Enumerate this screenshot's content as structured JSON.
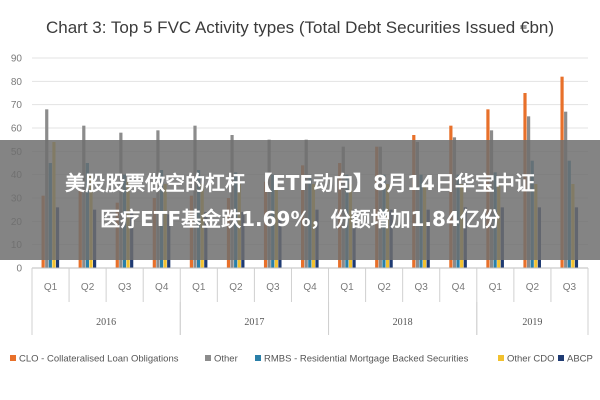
{
  "chart_data": {
    "type": "bar",
    "title": "Chart 3: Top 5 FVC Activity types (Total Debt Securities Issued €bn)",
    "ylim": [
      0,
      90
    ],
    "yticks": [
      0,
      10,
      20,
      30,
      40,
      50,
      60,
      70,
      80,
      90
    ],
    "grid": true,
    "legend_position": "bottom",
    "categories": [
      "Q1",
      "Q2",
      "Q3",
      "Q4",
      "Q1",
      "Q2",
      "Q3",
      "Q4",
      "Q1",
      "Q2",
      "Q3",
      "Q4",
      "Q1",
      "Q2",
      "Q3"
    ],
    "groups": [
      {
        "label": "2016",
        "start": 0,
        "end": 3
      },
      {
        "label": "2017",
        "start": 4,
        "end": 7
      },
      {
        "label": "2018",
        "start": 8,
        "end": 11
      },
      {
        "label": "2019",
        "start": 12,
        "end": 14
      }
    ],
    "series": [
      {
        "name": "CLO - Collateralised Loan Obligations",
        "color": "#e8702a",
        "values": [
          31,
          33,
          28,
          30,
          31,
          30,
          37,
          44,
          45,
          52,
          57,
          61,
          68,
          75,
          82
        ]
      },
      {
        "name": "Other",
        "color": "#8c8c8c",
        "values": [
          68,
          61,
          58,
          59,
          61,
          57,
          55,
          55,
          52,
          52,
          54,
          56,
          59,
          65,
          67
        ]
      },
      {
        "name": "RMBS - Residential Mortgage Backed Securities",
        "color": "#2a7fa8",
        "values": [
          45,
          45,
          40,
          42,
          42,
          41,
          40,
          40,
          40,
          40,
          40,
          40,
          41,
          46,
          46
        ]
      },
      {
        "name": "Other CDO",
        "color": "#f2c12e",
        "values": [
          54,
          40,
          38,
          36,
          36,
          36,
          36,
          36,
          36,
          36,
          36,
          36,
          36,
          36,
          36
        ]
      },
      {
        "name": "ABCP",
        "color": "#1f3b73",
        "values": [
          26,
          25,
          24,
          23,
          24,
          24,
          24,
          25,
          25,
          25,
          25,
          26,
          26,
          26,
          26
        ]
      }
    ]
  },
  "overlay": {
    "line1": "美股股票做空的杠杆 【ETF动向】8月14日华宝中证",
    "line2": "医疗ETF基金跌1.69%，份额增加1.84亿份"
  }
}
